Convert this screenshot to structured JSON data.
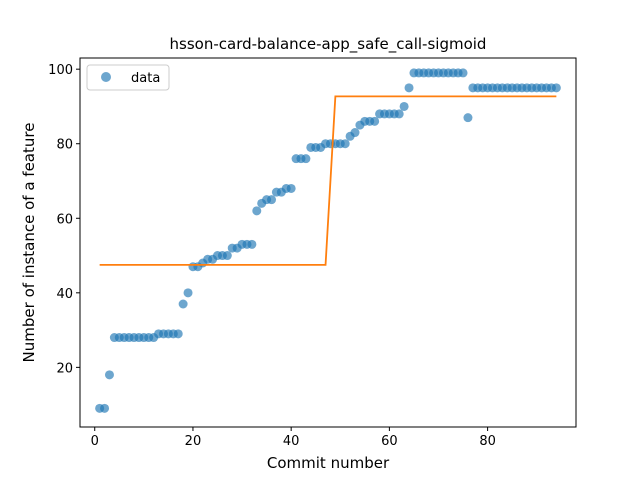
{
  "chart_data": {
    "type": "scatter",
    "title": "hsson-card-balance-app_safe_call-sigmoid",
    "xlabel": "Commit number",
    "ylabel": "Number of instance of a feature",
    "xlim": [
      -3,
      98
    ],
    "ylim": [
      4,
      103
    ],
    "xticks": [
      0,
      20,
      40,
      60,
      80
    ],
    "yticks": [
      20,
      40,
      60,
      80,
      100
    ],
    "grid": false,
    "legend": {
      "placement": "top-left",
      "entries": [
        "data"
      ]
    },
    "colors": {
      "data": "#1f77b4",
      "fit": "#ff7f0e"
    },
    "series": [
      {
        "name": "data",
        "kind": "scatter",
        "x": [
          1,
          2,
          3,
          4,
          5,
          6,
          7,
          8,
          9,
          10,
          11,
          12,
          13,
          14,
          15,
          16,
          17,
          18,
          19,
          20,
          21,
          22,
          23,
          24,
          25,
          26,
          27,
          28,
          29,
          30,
          31,
          32,
          33,
          34,
          35,
          36,
          37,
          38,
          39,
          40,
          41,
          42,
          43,
          44,
          45,
          46,
          47,
          48,
          49,
          50,
          51,
          52,
          53,
          54,
          55,
          56,
          57,
          58,
          59,
          60,
          61,
          62,
          63,
          64,
          65,
          66,
          67,
          68,
          69,
          70,
          71,
          72,
          73,
          74,
          75,
          76,
          77,
          78,
          79,
          80,
          81,
          82,
          83,
          84,
          85,
          86,
          87,
          88,
          89,
          90,
          91,
          92,
          93,
          94
        ],
        "y": [
          9,
          9,
          18,
          28,
          28,
          28,
          28,
          28,
          28,
          28,
          28,
          28,
          29,
          29,
          29,
          29,
          29,
          37,
          40,
          47,
          47,
          48,
          49,
          49,
          50,
          50,
          50,
          52,
          52,
          53,
          53,
          53,
          62,
          64,
          65,
          65,
          67,
          67,
          68,
          68,
          76,
          76,
          76,
          79,
          79,
          79,
          80,
          80,
          80,
          80,
          80,
          82,
          83,
          85,
          86,
          86,
          86,
          88,
          88,
          88,
          88,
          88,
          90,
          95,
          99,
          99,
          99,
          99,
          99,
          99,
          99,
          99,
          99,
          99,
          99,
          87,
          95,
          95,
          95,
          95,
          95,
          95,
          95,
          95,
          95,
          95,
          95,
          95,
          95,
          95,
          95,
          95,
          95,
          95
        ]
      },
      {
        "kind": "line",
        "x": [
          1,
          47,
          49,
          94
        ],
        "y": [
          47.5,
          47.5,
          92.7,
          92.7
        ]
      }
    ]
  }
}
